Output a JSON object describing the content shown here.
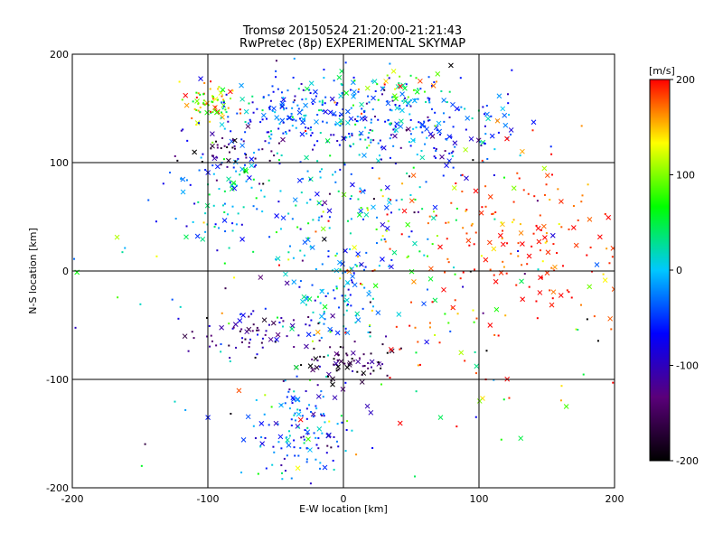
{
  "chart_data": {
    "type": "scatter",
    "title": "Tromsø 20150524 21:20:00-21:21:43",
    "subtitle": "RwPretec (8p) EXPERIMENTAL SKYMAP",
    "xlabel": "E-W location [km]",
    "ylabel": "N-S location [km]",
    "xlim": [
      -200,
      200
    ],
    "ylim": [
      -200,
      200
    ],
    "xticks": [
      "-200",
      "-100",
      "0",
      "100",
      "200"
    ],
    "yticks": [
      "-200",
      "-100",
      "0",
      "100",
      "200"
    ],
    "grid": true,
    "markers": [
      "cross",
      "dot"
    ],
    "colorbar": {
      "label": "[m/s]",
      "min": -200,
      "max": 200,
      "ticks": [
        "200",
        "100",
        "0",
        "-100",
        "-200"
      ],
      "colormap": "rainbow (black-purple-blue-cyan-green-yellow-red)",
      "stops": [
        "#000000",
        "#5a007a",
        "#0000ff",
        "#00c8ff",
        "#00ff00",
        "#ffff00",
        "#ff0000"
      ]
    },
    "clusters": [
      {
        "cx": -100,
        "cy": 155,
        "sx": 10,
        "sy": 10,
        "n": 70,
        "v": 130,
        "vs": 50
      },
      {
        "cx": -40,
        "cy": 145,
        "sx": 25,
        "sy": 15,
        "n": 110,
        "v": -40,
        "vs": 40
      },
      {
        "cx": 10,
        "cy": 145,
        "sx": 30,
        "sy": 20,
        "n": 150,
        "v": -30,
        "vs": 40
      },
      {
        "cx": 70,
        "cy": 130,
        "sx": 35,
        "sy": 20,
        "n": 130,
        "v": -50,
        "vs": 40
      },
      {
        "cx": 40,
        "cy": 170,
        "sx": 20,
        "sy": 8,
        "n": 40,
        "v": 70,
        "vs": 70
      },
      {
        "cx": -90,
        "cy": 70,
        "sx": 15,
        "sy": 30,
        "n": 80,
        "v": -20,
        "vs": 45
      },
      {
        "cx": -80,
        "cy": 110,
        "sx": 15,
        "sy": 10,
        "n": 45,
        "v": -150,
        "vs": 30
      },
      {
        "cx": -20,
        "cy": 60,
        "sx": 30,
        "sy": 30,
        "n": 90,
        "v": -10,
        "vs": 50
      },
      {
        "cx": 40,
        "cy": 50,
        "sx": 30,
        "sy": 30,
        "n": 50,
        "v": 70,
        "vs": 80
      },
      {
        "cx": 130,
        "cy": 30,
        "sx": 40,
        "sy": 40,
        "n": 160,
        "v": 185,
        "vs": 20
      },
      {
        "cx": 0,
        "cy": -20,
        "sx": 20,
        "sy": 25,
        "n": 110,
        "v": -20,
        "vs": 50
      },
      {
        "cx": -70,
        "cy": -60,
        "sx": 20,
        "sy": 10,
        "n": 70,
        "v": -130,
        "vs": 40
      },
      {
        "cx": 5,
        "cy": -85,
        "sx": 15,
        "sy": 10,
        "n": 70,
        "v": -160,
        "vs": 40
      },
      {
        "cx": -30,
        "cy": -145,
        "sx": 20,
        "sy": 20,
        "n": 130,
        "v": -40,
        "vs": 50
      },
      {
        "cx": 100,
        "cy": -50,
        "sx": 60,
        "sy": 50,
        "n": 70,
        "v": 150,
        "vs": 80
      },
      {
        "cx": 0,
        "cy": 0,
        "sx": 120,
        "sy": 120,
        "n": 200,
        "v": 0,
        "vs": 120
      }
    ]
  }
}
